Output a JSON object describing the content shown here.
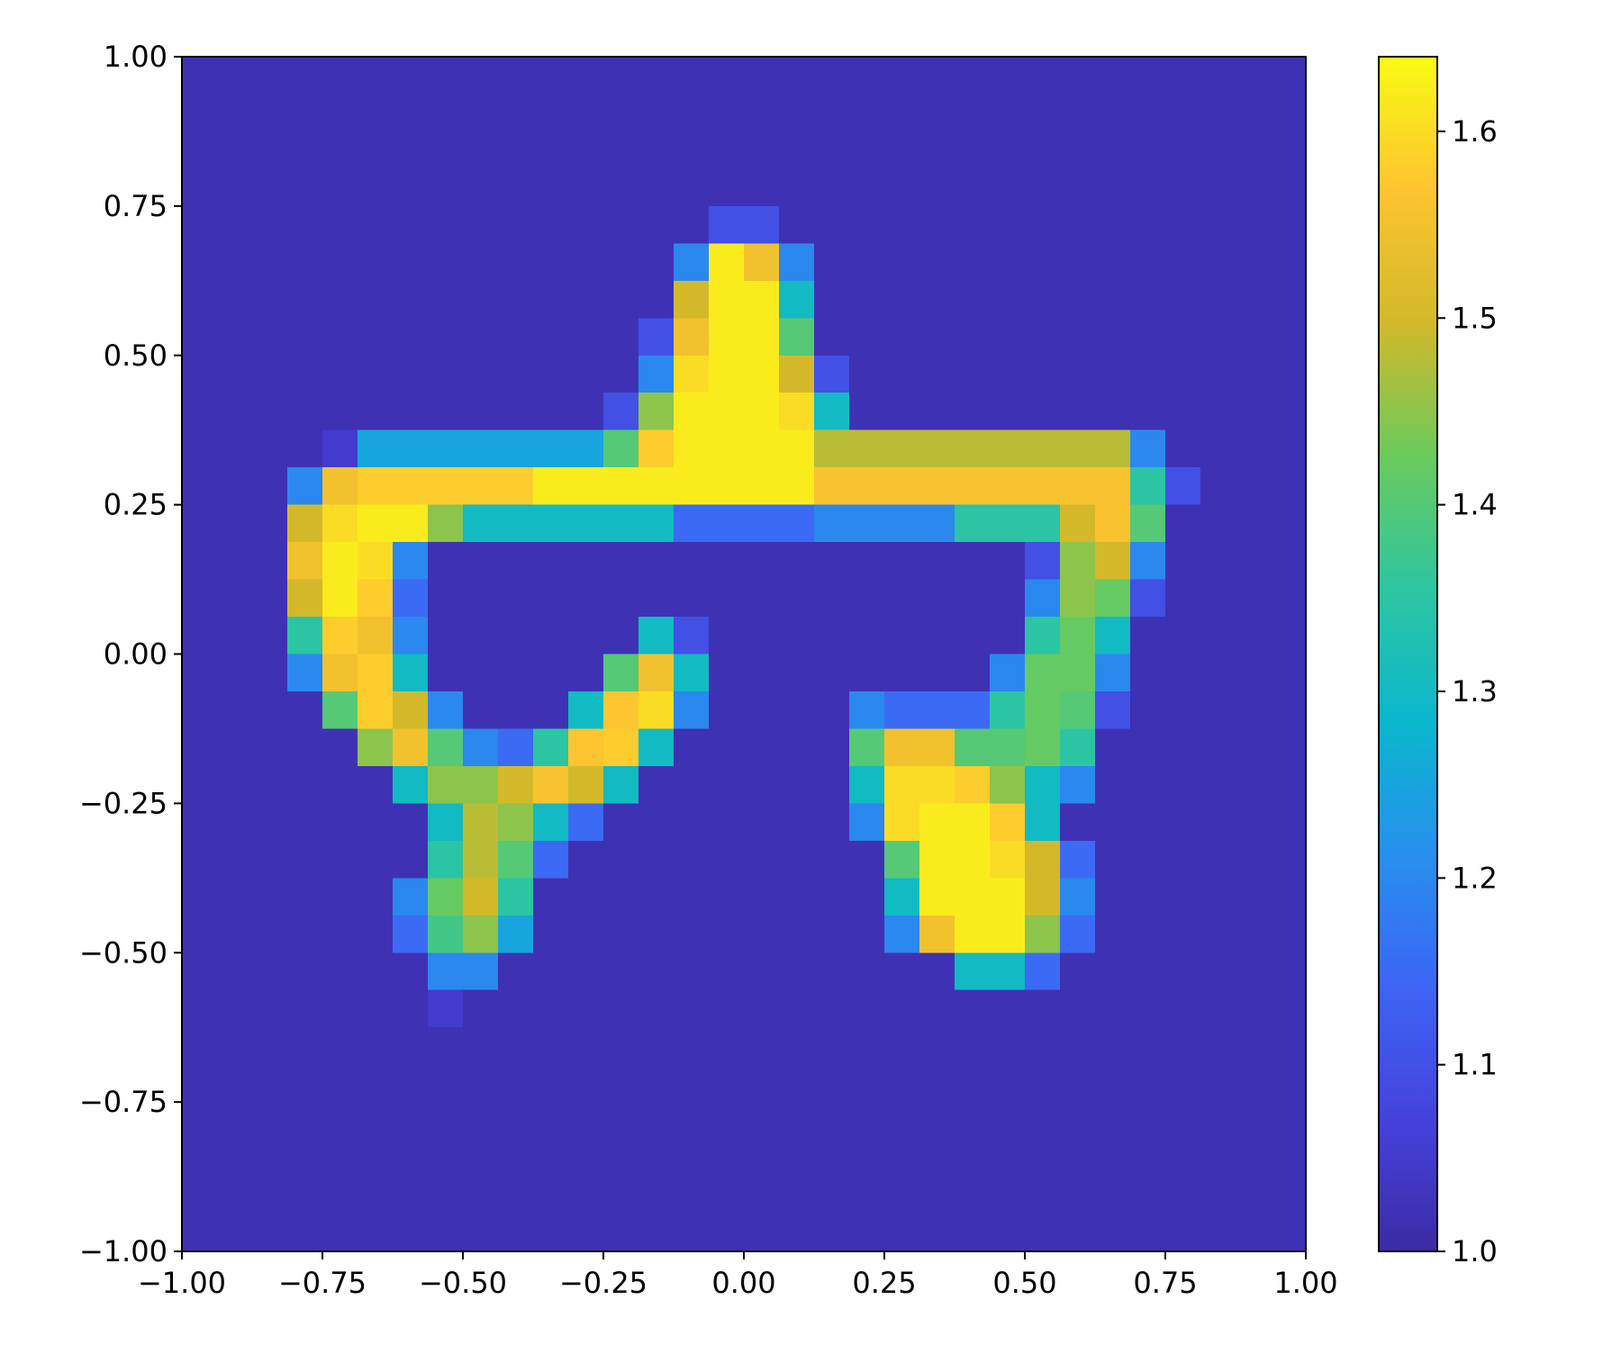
{
  "chart_data": {
    "type": "heatmap",
    "xlim": [
      -1,
      1
    ],
    "ylim": [
      -1,
      1
    ],
    "xticks": [
      {
        "value": -1,
        "label": "−1.00"
      },
      {
        "value": -0.75,
        "label": "−0.75"
      },
      {
        "value": -0.5,
        "label": "−0.50"
      },
      {
        "value": -0.25,
        "label": "−0.25"
      },
      {
        "value": 0,
        "label": "0.00"
      },
      {
        "value": 0.25,
        "label": "0.25"
      },
      {
        "value": 0.5,
        "label": "0.50"
      },
      {
        "value": 0.75,
        "label": "0.75"
      },
      {
        "value": 1,
        "label": "1.00"
      }
    ],
    "yticks": [
      {
        "value": -1,
        "label": "−1.00"
      },
      {
        "value": -0.75,
        "label": "−0.75"
      },
      {
        "value": -0.5,
        "label": "−0.50"
      },
      {
        "value": -0.25,
        "label": "−0.25"
      },
      {
        "value": 0,
        "label": "0.00"
      },
      {
        "value": 0.25,
        "label": "0.25"
      },
      {
        "value": 0.5,
        "label": "0.50"
      },
      {
        "value": 0.75,
        "label": "0.75"
      },
      {
        "value": 1,
        "label": "1.00"
      }
    ],
    "colorbar": {
      "clim": [
        1,
        1.64
      ],
      "ticks": [
        {
          "value": 1,
          "label": "1.0"
        },
        1.1,
        1.2,
        1.3,
        1.4,
        1.5,
        1.6
      ],
      "colormap": [
        "#3c2ba5",
        "#4542dc",
        "#3d65f5",
        "#2790ed",
        "#0ab7cd",
        "#2ec6a0",
        "#6cca5c",
        "#d2b92a",
        "#fdc430",
        "#f9fb14"
      ]
    },
    "values": [
      [
        1.02,
        1.02,
        1.02,
        1.02,
        1.02,
        1.02,
        1.02,
        1.02,
        1.02,
        1.02,
        1.02,
        1.02,
        1.02,
        1.02,
        1.02,
        1.02,
        1.02,
        1.02,
        1.02,
        1.02,
        1.02,
        1.02,
        1.02,
        1.02,
        1.02,
        1.02,
        1.02,
        1.02,
        1.02,
        1.02,
        1.02,
        1.02
      ],
      [
        1.02,
        1.02,
        1.02,
        1.02,
        1.02,
        1.02,
        1.02,
        1.02,
        1.02,
        1.02,
        1.02,
        1.02,
        1.02,
        1.02,
        1.02,
        1.02,
        1.02,
        1.02,
        1.02,
        1.02,
        1.02,
        1.02,
        1.02,
        1.02,
        1.02,
        1.02,
        1.02,
        1.02,
        1.02,
        1.02,
        1.02,
        1.02
      ],
      [
        1.02,
        1.02,
        1.02,
        1.02,
        1.02,
        1.02,
        1.02,
        1.02,
        1.02,
        1.02,
        1.02,
        1.02,
        1.02,
        1.02,
        1.02,
        1.02,
        1.02,
        1.02,
        1.02,
        1.02,
        1.02,
        1.02,
        1.02,
        1.02,
        1.02,
        1.02,
        1.02,
        1.02,
        1.02,
        1.02,
        1.02,
        1.02
      ],
      [
        1.02,
        1.02,
        1.02,
        1.02,
        1.02,
        1.02,
        1.02,
        1.02,
        1.02,
        1.02,
        1.02,
        1.02,
        1.02,
        1.02,
        1.02,
        1.02,
        1.02,
        1.02,
        1.02,
        1.02,
        1.02,
        1.02,
        1.02,
        1.02,
        1.02,
        1.02,
        1.02,
        1.02,
        1.02,
        1.02,
        1.02,
        1.02
      ],
      [
        1.02,
        1.02,
        1.02,
        1.02,
        1.02,
        1.02,
        1.02,
        1.02,
        1.02,
        1.02,
        1.02,
        1.02,
        1.02,
        1.02,
        1.02,
        1.1,
        1.1,
        1.02,
        1.02,
        1.02,
        1.02,
        1.02,
        1.02,
        1.02,
        1.02,
        1.02,
        1.02,
        1.02,
        1.02,
        1.02,
        1.02,
        1.02
      ],
      [
        1.02,
        1.02,
        1.02,
        1.02,
        1.02,
        1.02,
        1.02,
        1.02,
        1.02,
        1.02,
        1.02,
        1.02,
        1.02,
        1.02,
        1.2,
        1.62,
        1.55,
        1.2,
        1.02,
        1.02,
        1.02,
        1.02,
        1.02,
        1.02,
        1.02,
        1.02,
        1.02,
        1.02,
        1.02,
        1.02,
        1.02,
        1.02
      ],
      [
        1.02,
        1.02,
        1.02,
        1.02,
        1.02,
        1.02,
        1.02,
        1.02,
        1.02,
        1.02,
        1.02,
        1.02,
        1.02,
        1.02,
        1.5,
        1.62,
        1.62,
        1.3,
        1.02,
        1.02,
        1.02,
        1.02,
        1.02,
        1.02,
        1.02,
        1.02,
        1.02,
        1.02,
        1.02,
        1.02,
        1.02,
        1.02
      ],
      [
        1.02,
        1.02,
        1.02,
        1.02,
        1.02,
        1.02,
        1.02,
        1.02,
        1.02,
        1.02,
        1.02,
        1.02,
        1.02,
        1.1,
        1.55,
        1.62,
        1.62,
        1.4,
        1.02,
        1.02,
        1.02,
        1.02,
        1.02,
        1.02,
        1.02,
        1.02,
        1.02,
        1.02,
        1.02,
        1.02,
        1.02,
        1.02
      ],
      [
        1.02,
        1.02,
        1.02,
        1.02,
        1.02,
        1.02,
        1.02,
        1.02,
        1.02,
        1.02,
        1.02,
        1.02,
        1.02,
        1.2,
        1.6,
        1.62,
        1.62,
        1.5,
        1.1,
        1.02,
        1.02,
        1.02,
        1.02,
        1.02,
        1.02,
        1.02,
        1.02,
        1.02,
        1.02,
        1.02,
        1.02,
        1.02
      ],
      [
        1.02,
        1.02,
        1.02,
        1.02,
        1.02,
        1.02,
        1.02,
        1.02,
        1.02,
        1.02,
        1.02,
        1.02,
        1.1,
        1.45,
        1.62,
        1.62,
        1.62,
        1.6,
        1.3,
        1.02,
        1.02,
        1.02,
        1.02,
        1.02,
        1.02,
        1.02,
        1.02,
        1.02,
        1.02,
        1.02,
        1.02,
        1.02
      ],
      [
        1.02,
        1.02,
        1.02,
        1.02,
        1.05,
        1.25,
        1.25,
        1.25,
        1.25,
        1.25,
        1.25,
        1.25,
        1.4,
        1.58,
        1.62,
        1.62,
        1.62,
        1.62,
        1.48,
        1.48,
        1.48,
        1.48,
        1.48,
        1.48,
        1.48,
        1.48,
        1.48,
        1.2,
        1.02,
        1.02,
        1.02,
        1.02
      ],
      [
        1.02,
        1.02,
        1.02,
        1.2,
        1.55,
        1.58,
        1.58,
        1.58,
        1.58,
        1.58,
        1.62,
        1.62,
        1.62,
        1.62,
        1.62,
        1.62,
        1.62,
        1.62,
        1.56,
        1.56,
        1.56,
        1.56,
        1.56,
        1.56,
        1.56,
        1.56,
        1.56,
        1.35,
        1.1,
        1.02,
        1.02,
        1.02
      ],
      [
        1.02,
        1.02,
        1.02,
        1.5,
        1.6,
        1.62,
        1.62,
        1.45,
        1.3,
        1.3,
        1.3,
        1.3,
        1.3,
        1.3,
        1.15,
        1.15,
        1.15,
        1.15,
        1.2,
        1.2,
        1.2,
        1.2,
        1.35,
        1.35,
        1.35,
        1.5,
        1.56,
        1.4,
        1.02,
        1.02,
        1.02,
        1.02
      ],
      [
        1.02,
        1.02,
        1.02,
        1.55,
        1.62,
        1.6,
        1.2,
        1.02,
        1.02,
        1.02,
        1.02,
        1.02,
        1.02,
        1.02,
        1.02,
        1.02,
        1.02,
        1.02,
        1.02,
        1.02,
        1.02,
        1.02,
        1.02,
        1.02,
        1.1,
        1.45,
        1.5,
        1.2,
        1.02,
        1.02,
        1.02,
        1.02
      ],
      [
        1.02,
        1.02,
        1.02,
        1.5,
        1.62,
        1.58,
        1.15,
        1.02,
        1.02,
        1.02,
        1.02,
        1.02,
        1.02,
        1.02,
        1.02,
        1.02,
        1.02,
        1.02,
        1.02,
        1.02,
        1.02,
        1.02,
        1.02,
        1.02,
        1.2,
        1.45,
        1.42,
        1.1,
        1.02,
        1.02,
        1.02,
        1.02
      ],
      [
        1.02,
        1.02,
        1.02,
        1.35,
        1.58,
        1.55,
        1.2,
        1.02,
        1.02,
        1.02,
        1.02,
        1.02,
        1.02,
        1.3,
        1.1,
        1.02,
        1.02,
        1.02,
        1.02,
        1.02,
        1.02,
        1.02,
        1.02,
        1.02,
        1.35,
        1.42,
        1.3,
        1.02,
        1.02,
        1.02,
        1.02,
        1.02
      ],
      [
        1.02,
        1.02,
        1.02,
        1.2,
        1.55,
        1.58,
        1.3,
        1.02,
        1.02,
        1.02,
        1.02,
        1.02,
        1.4,
        1.55,
        1.3,
        1.02,
        1.02,
        1.02,
        1.02,
        1.02,
        1.02,
        1.02,
        1.02,
        1.2,
        1.42,
        1.42,
        1.2,
        1.02,
        1.02,
        1.02,
        1.02,
        1.02
      ],
      [
        1.02,
        1.02,
        1.02,
        1.02,
        1.4,
        1.58,
        1.5,
        1.2,
        1.02,
        1.02,
        1.02,
        1.3,
        1.57,
        1.6,
        1.2,
        1.02,
        1.02,
        1.02,
        1.02,
        1.2,
        1.15,
        1.15,
        1.15,
        1.35,
        1.42,
        1.4,
        1.1,
        1.02,
        1.02,
        1.02,
        1.02,
        1.02
      ],
      [
        1.02,
        1.02,
        1.02,
        1.02,
        1.02,
        1.45,
        1.55,
        1.4,
        1.2,
        1.15,
        1.35,
        1.57,
        1.58,
        1.3,
        1.02,
        1.02,
        1.02,
        1.02,
        1.02,
        1.4,
        1.55,
        1.55,
        1.4,
        1.4,
        1.42,
        1.35,
        1.02,
        1.02,
        1.02,
        1.02,
        1.02,
        1.02
      ],
      [
        1.02,
        1.02,
        1.02,
        1.02,
        1.02,
        1.02,
        1.3,
        1.45,
        1.45,
        1.5,
        1.56,
        1.5,
        1.3,
        1.02,
        1.02,
        1.02,
        1.02,
        1.02,
        1.02,
        1.3,
        1.6,
        1.6,
        1.58,
        1.45,
        1.3,
        1.2,
        1.02,
        1.02,
        1.02,
        1.02,
        1.02,
        1.02
      ],
      [
        1.02,
        1.02,
        1.02,
        1.02,
        1.02,
        1.02,
        1.02,
        1.3,
        1.48,
        1.45,
        1.3,
        1.15,
        1.02,
        1.02,
        1.02,
        1.02,
        1.02,
        1.02,
        1.02,
        1.2,
        1.6,
        1.62,
        1.62,
        1.58,
        1.3,
        1.02,
        1.02,
        1.02,
        1.02,
        1.02,
        1.02,
        1.02
      ],
      [
        1.02,
        1.02,
        1.02,
        1.02,
        1.02,
        1.02,
        1.02,
        1.35,
        1.48,
        1.4,
        1.15,
        1.02,
        1.02,
        1.02,
        1.02,
        1.02,
        1.02,
        1.02,
        1.02,
        1.02,
        1.4,
        1.62,
        1.62,
        1.6,
        1.5,
        1.15,
        1.02,
        1.02,
        1.02,
        1.02,
        1.02,
        1.02
      ],
      [
        1.02,
        1.02,
        1.02,
        1.02,
        1.02,
        1.02,
        1.2,
        1.42,
        1.5,
        1.35,
        1.02,
        1.02,
        1.02,
        1.02,
        1.02,
        1.02,
        1.02,
        1.02,
        1.02,
        1.02,
        1.3,
        1.62,
        1.62,
        1.62,
        1.5,
        1.2,
        1.02,
        1.02,
        1.02,
        1.02,
        1.02,
        1.02
      ],
      [
        1.02,
        1.02,
        1.02,
        1.02,
        1.02,
        1.02,
        1.15,
        1.38,
        1.45,
        1.25,
        1.02,
        1.02,
        1.02,
        1.02,
        1.02,
        1.02,
        1.02,
        1.02,
        1.02,
        1.02,
        1.2,
        1.55,
        1.62,
        1.62,
        1.45,
        1.15,
        1.02,
        1.02,
        1.02,
        1.02,
        1.02,
        1.02
      ],
      [
        1.02,
        1.02,
        1.02,
        1.02,
        1.02,
        1.02,
        1.02,
        1.2,
        1.2,
        1.02,
        1.02,
        1.02,
        1.02,
        1.02,
        1.02,
        1.02,
        1.02,
        1.02,
        1.02,
        1.02,
        1.02,
        1.02,
        1.3,
        1.3,
        1.15,
        1.02,
        1.02,
        1.02,
        1.02,
        1.02,
        1.02,
        1.02
      ],
      [
        1.02,
        1.02,
        1.02,
        1.02,
        1.02,
        1.02,
        1.02,
        1.05,
        1.02,
        1.02,
        1.02,
        1.02,
        1.02,
        1.02,
        1.02,
        1.02,
        1.02,
        1.02,
        1.02,
        1.02,
        1.02,
        1.02,
        1.02,
        1.02,
        1.02,
        1.02,
        1.02,
        1.02,
        1.02,
        1.02,
        1.02,
        1.02
      ],
      [
        1.02,
        1.02,
        1.02,
        1.02,
        1.02,
        1.02,
        1.02,
        1.02,
        1.02,
        1.02,
        1.02,
        1.02,
        1.02,
        1.02,
        1.02,
        1.02,
        1.02,
        1.02,
        1.02,
        1.02,
        1.02,
        1.02,
        1.02,
        1.02,
        1.02,
        1.02,
        1.02,
        1.02,
        1.02,
        1.02,
        1.02,
        1.02
      ],
      [
        1.02,
        1.02,
        1.02,
        1.02,
        1.02,
        1.02,
        1.02,
        1.02,
        1.02,
        1.02,
        1.02,
        1.02,
        1.02,
        1.02,
        1.02,
        1.02,
        1.02,
        1.02,
        1.02,
        1.02,
        1.02,
        1.02,
        1.02,
        1.02,
        1.02,
        1.02,
        1.02,
        1.02,
        1.02,
        1.02,
        1.02,
        1.02
      ],
      [
        1.02,
        1.02,
        1.02,
        1.02,
        1.02,
        1.02,
        1.02,
        1.02,
        1.02,
        1.02,
        1.02,
        1.02,
        1.02,
        1.02,
        1.02,
        1.02,
        1.02,
        1.02,
        1.02,
        1.02,
        1.02,
        1.02,
        1.02,
        1.02,
        1.02,
        1.02,
        1.02,
        1.02,
        1.02,
        1.02,
        1.02,
        1.02
      ],
      [
        1.02,
        1.02,
        1.02,
        1.02,
        1.02,
        1.02,
        1.02,
        1.02,
        1.02,
        1.02,
        1.02,
        1.02,
        1.02,
        1.02,
        1.02,
        1.02,
        1.02,
        1.02,
        1.02,
        1.02,
        1.02,
        1.02,
        1.02,
        1.02,
        1.02,
        1.02,
        1.02,
        1.02,
        1.02,
        1.02,
        1.02,
        1.02
      ],
      [
        1.02,
        1.02,
        1.02,
        1.02,
        1.02,
        1.02,
        1.02,
        1.02,
        1.02,
        1.02,
        1.02,
        1.02,
        1.02,
        1.02,
        1.02,
        1.02,
        1.02,
        1.02,
        1.02,
        1.02,
        1.02,
        1.02,
        1.02,
        1.02,
        1.02,
        1.02,
        1.02,
        1.02,
        1.02,
        1.02,
        1.02,
        1.02
      ],
      [
        1.02,
        1.02,
        1.02,
        1.02,
        1.02,
        1.02,
        1.02,
        1.02,
        1.02,
        1.02,
        1.02,
        1.02,
        1.02,
        1.02,
        1.02,
        1.02,
        1.02,
        1.02,
        1.02,
        1.02,
        1.02,
        1.02,
        1.02,
        1.02,
        1.02,
        1.02,
        1.02,
        1.02,
        1.02,
        1.02,
        1.02,
        1.02
      ]
    ]
  }
}
